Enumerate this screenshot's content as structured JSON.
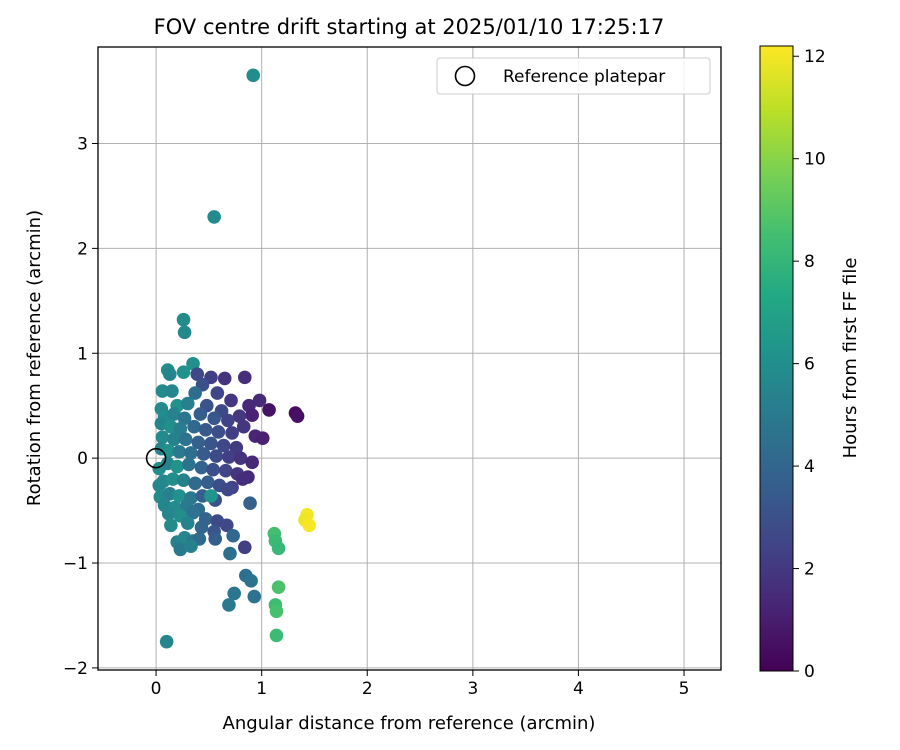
{
  "chart_data": {
    "type": "scatter",
    "title": "FOV centre drift starting at 2025/01/10 17:25:17",
    "xlabel": "Angular distance from reference (arcmin)",
    "ylabel": "Rotation from reference (arcmin)",
    "xlim": [
      -0.55,
      5.35
    ],
    "ylim": [
      -2.02,
      3.92
    ],
    "xticks": [
      0,
      1,
      2,
      3,
      4,
      5
    ],
    "xtick_labels": [
      "0",
      "1",
      "2",
      "3",
      "4",
      "5"
    ],
    "yticks": [
      -2,
      -1,
      0,
      1,
      2,
      3
    ],
    "ytick_labels": [
      "−2",
      "−1",
      "0",
      "1",
      "2",
      "3"
    ],
    "grid": true,
    "legend": {
      "placement": "top-right",
      "entries": [
        "Reference platepar"
      ]
    },
    "colorbar": {
      "label": "Hours from first FF file",
      "colormap": "viridis",
      "range": [
        0,
        12.2
      ],
      "ticks": [
        0,
        2,
        4,
        6,
        8,
        10,
        12
      ],
      "tick_labels": [
        "0",
        "2",
        "4",
        "6",
        "8",
        "10",
        "12"
      ]
    },
    "reference_point": {
      "x": 0,
      "y": 0,
      "label": "Reference platepar"
    },
    "points": [
      {
        "x": 0.92,
        "y": 3.65,
        "h": 5.9
      },
      {
        "x": 0.55,
        "y": 2.3,
        "h": 5.8
      },
      {
        "x": 0.26,
        "y": 1.32,
        "h": 5.8
      },
      {
        "x": 0.27,
        "y": 1.2,
        "h": 5.7
      },
      {
        "x": 0.35,
        "y": 0.9,
        "h": 6.0
      },
      {
        "x": 0.11,
        "y": 0.84,
        "h": 5.9
      },
      {
        "x": 0.13,
        "y": 0.8,
        "h": 5.5
      },
      {
        "x": 0.26,
        "y": 0.82,
        "h": 6.1
      },
      {
        "x": 0.39,
        "y": 0.8,
        "h": 2.6
      },
      {
        "x": 0.52,
        "y": 0.77,
        "h": 2.2
      },
      {
        "x": 0.65,
        "y": 0.76,
        "h": 1.8
      },
      {
        "x": 0.84,
        "y": 0.77,
        "h": 1.6
      },
      {
        "x": 0.44,
        "y": 0.7,
        "h": 3.0
      },
      {
        "x": 0.06,
        "y": 0.64,
        "h": 5.8
      },
      {
        "x": 0.15,
        "y": 0.64,
        "h": 5.6
      },
      {
        "x": 0.37,
        "y": 0.62,
        "h": 4.3
      },
      {
        "x": 0.58,
        "y": 0.62,
        "h": 2.5
      },
      {
        "x": 0.71,
        "y": 0.55,
        "h": 1.9
      },
      {
        "x": 0.88,
        "y": 0.5,
        "h": 1.4
      },
      {
        "x": 0.98,
        "y": 0.55,
        "h": 1.5
      },
      {
        "x": 1.07,
        "y": 0.46,
        "h": 0.6
      },
      {
        "x": 1.32,
        "y": 0.43,
        "h": 0.4
      },
      {
        "x": 1.34,
        "y": 0.4,
        "h": 0.5
      },
      {
        "x": 0.91,
        "y": 0.41,
        "h": 1.2
      },
      {
        "x": 0.05,
        "y": 0.47,
        "h": 5.7
      },
      {
        "x": 0.2,
        "y": 0.5,
        "h": 6.2
      },
      {
        "x": 0.3,
        "y": 0.52,
        "h": 5.2
      },
      {
        "x": 0.48,
        "y": 0.5,
        "h": 3.1
      },
      {
        "x": 0.62,
        "y": 0.45,
        "h": 2.7
      },
      {
        "x": 0.79,
        "y": 0.4,
        "h": 2.0
      },
      {
        "x": 0.08,
        "y": 0.4,
        "h": 5.9
      },
      {
        "x": 0.17,
        "y": 0.42,
        "h": 5.4
      },
      {
        "x": 0.27,
        "y": 0.38,
        "h": 4.8
      },
      {
        "x": 0.42,
        "y": 0.42,
        "h": 3.6
      },
      {
        "x": 0.55,
        "y": 0.38,
        "h": 3.3
      },
      {
        "x": 0.68,
        "y": 0.36,
        "h": 2.4
      },
      {
        "x": 0.83,
        "y": 0.3,
        "h": 1.9
      },
      {
        "x": 0.05,
        "y": 0.33,
        "h": 5.5
      },
      {
        "x": 0.14,
        "y": 0.3,
        "h": 6.0
      },
      {
        "x": 0.23,
        "y": 0.28,
        "h": 5.1
      },
      {
        "x": 0.36,
        "y": 0.3,
        "h": 4.1
      },
      {
        "x": 0.47,
        "y": 0.27,
        "h": 3.4
      },
      {
        "x": 0.59,
        "y": 0.25,
        "h": 2.9
      },
      {
        "x": 0.72,
        "y": 0.24,
        "h": 2.2
      },
      {
        "x": 0.94,
        "y": 0.21,
        "h": 1.3
      },
      {
        "x": 1.01,
        "y": 0.19,
        "h": 1.1
      },
      {
        "x": 0.06,
        "y": 0.2,
        "h": 5.8
      },
      {
        "x": 0.17,
        "y": 0.18,
        "h": 5.3
      },
      {
        "x": 0.28,
        "y": 0.18,
        "h": 4.6
      },
      {
        "x": 0.4,
        "y": 0.15,
        "h": 3.8
      },
      {
        "x": 0.52,
        "y": 0.14,
        "h": 3.2
      },
      {
        "x": 0.64,
        "y": 0.12,
        "h": 2.6
      },
      {
        "x": 0.76,
        "y": 0.1,
        "h": 2.1
      },
      {
        "x": 0.05,
        "y": 0.09,
        "h": 5.6
      },
      {
        "x": 0.12,
        "y": 0.07,
        "h": 6.1
      },
      {
        "x": 0.22,
        "y": 0.06,
        "h": 5.0
      },
      {
        "x": 0.33,
        "y": 0.05,
        "h": 4.4
      },
      {
        "x": 0.45,
        "y": 0.04,
        "h": 3.5
      },
      {
        "x": 0.57,
        "y": 0.02,
        "h": 2.8
      },
      {
        "x": 0.69,
        "y": 0.01,
        "h": 2.3
      },
      {
        "x": 0.8,
        "y": 0.0,
        "h": 1.8
      },
      {
        "x": 0.91,
        "y": -0.04,
        "h": 1.4
      },
      {
        "x": 0.03,
        "y": -0.1,
        "h": 5.9
      },
      {
        "x": 0.11,
        "y": -0.05,
        "h": 5.4
      },
      {
        "x": 0.2,
        "y": -0.08,
        "h": 6.2
      },
      {
        "x": 0.31,
        "y": -0.06,
        "h": 4.7
      },
      {
        "x": 0.43,
        "y": -0.09,
        "h": 3.9
      },
      {
        "x": 0.54,
        "y": -0.11,
        "h": 3.0
      },
      {
        "x": 0.66,
        "y": -0.12,
        "h": 2.5
      },
      {
        "x": 0.77,
        "y": -0.15,
        "h": 1.9
      },
      {
        "x": 0.87,
        "y": -0.18,
        "h": 1.5
      },
      {
        "x": 0.07,
        "y": -0.22,
        "h": 5.7
      },
      {
        "x": 0.16,
        "y": -0.2,
        "h": 6.0
      },
      {
        "x": 0.26,
        "y": -0.21,
        "h": 5.3
      },
      {
        "x": 0.37,
        "y": -0.24,
        "h": 4.2
      },
      {
        "x": 0.49,
        "y": -0.23,
        "h": 3.6
      },
      {
        "x": 0.6,
        "y": -0.26,
        "h": 2.9
      },
      {
        "x": 0.72,
        "y": -0.28,
        "h": 2.4
      },
      {
        "x": 0.82,
        "y": -0.2,
        "h": 1.6
      },
      {
        "x": 0.03,
        "y": -0.26,
        "h": 5.6
      },
      {
        "x": 0.04,
        "y": -0.37,
        "h": 5.8
      },
      {
        "x": 0.13,
        "y": -0.34,
        "h": 5.2
      },
      {
        "x": 0.22,
        "y": -0.36,
        "h": 6.1
      },
      {
        "x": 0.33,
        "y": -0.38,
        "h": 4.9
      },
      {
        "x": 0.44,
        "y": -0.36,
        "h": 3.7
      },
      {
        "x": 0.56,
        "y": -0.4,
        "h": 3.1
      },
      {
        "x": 0.68,
        "y": -0.3,
        "h": 2.6
      },
      {
        "x": 0.08,
        "y": -0.45,
        "h": 5.5
      },
      {
        "x": 0.18,
        "y": -0.47,
        "h": 5.9
      },
      {
        "x": 0.29,
        "y": -0.46,
        "h": 5.0
      },
      {
        "x": 0.4,
        "y": -0.49,
        "h": 4.3
      },
      {
        "x": 0.52,
        "y": -0.36,
        "h": 6.3
      },
      {
        "x": 0.89,
        "y": -0.43,
        "h": 3.8
      },
      {
        "x": 0.12,
        "y": -0.53,
        "h": 5.6
      },
      {
        "x": 0.23,
        "y": -0.55,
        "h": 6.0
      },
      {
        "x": 0.35,
        "y": -0.52,
        "h": 4.6
      },
      {
        "x": 0.47,
        "y": -0.58,
        "h": 3.9
      },
      {
        "x": 0.58,
        "y": -0.6,
        "h": 2.7
      },
      {
        "x": 0.14,
        "y": -0.64,
        "h": 5.8
      },
      {
        "x": 0.3,
        "y": -0.62,
        "h": 5.4
      },
      {
        "x": 0.43,
        "y": -0.66,
        "h": 4.0
      },
      {
        "x": 0.67,
        "y": -0.64,
        "h": 2.6
      },
      {
        "x": 0.55,
        "y": -0.7,
        "h": 3.2
      },
      {
        "x": 0.2,
        "y": -0.8,
        "h": 5.2
      },
      {
        "x": 0.27,
        "y": -0.76,
        "h": 5.6
      },
      {
        "x": 0.35,
        "y": -0.79,
        "h": 4.8
      },
      {
        "x": 0.41,
        "y": -0.77,
        "h": 4.2
      },
      {
        "x": 0.56,
        "y": -0.77,
        "h": 3.6
      },
      {
        "x": 0.23,
        "y": -0.87,
        "h": 4.9
      },
      {
        "x": 0.33,
        "y": -0.84,
        "h": 5.3
      },
      {
        "x": 0.73,
        "y": -0.74,
        "h": 4.1
      },
      {
        "x": 0.84,
        "y": -0.85,
        "h": 2.3
      },
      {
        "x": 0.7,
        "y": -0.91,
        "h": 4.5
      },
      {
        "x": 1.12,
        "y": -0.72,
        "h": 8.5
      },
      {
        "x": 1.13,
        "y": -0.79,
        "h": 8.2
      },
      {
        "x": 1.16,
        "y": -0.86,
        "h": 8.1
      },
      {
        "x": 1.43,
        "y": -0.54,
        "h": 12.0
      },
      {
        "x": 1.41,
        "y": -0.59,
        "h": 11.9
      },
      {
        "x": 1.45,
        "y": -0.64,
        "h": 12.1
      },
      {
        "x": 0.85,
        "y": -1.12,
        "h": 4.4
      },
      {
        "x": 0.9,
        "y": -1.17,
        "h": 4.7
      },
      {
        "x": 0.74,
        "y": -1.29,
        "h": 4.8
      },
      {
        "x": 0.93,
        "y": -1.32,
        "h": 4.6
      },
      {
        "x": 0.69,
        "y": -1.4,
        "h": 5.0
      },
      {
        "x": 1.16,
        "y": -1.23,
        "h": 8.7
      },
      {
        "x": 1.13,
        "y": -1.4,
        "h": 8.4
      },
      {
        "x": 1.14,
        "y": -1.46,
        "h": 8.6
      },
      {
        "x": 1.14,
        "y": -1.69,
        "h": 8.3
      },
      {
        "x": 0.1,
        "y": -1.75,
        "h": 5.5
      }
    ]
  }
}
